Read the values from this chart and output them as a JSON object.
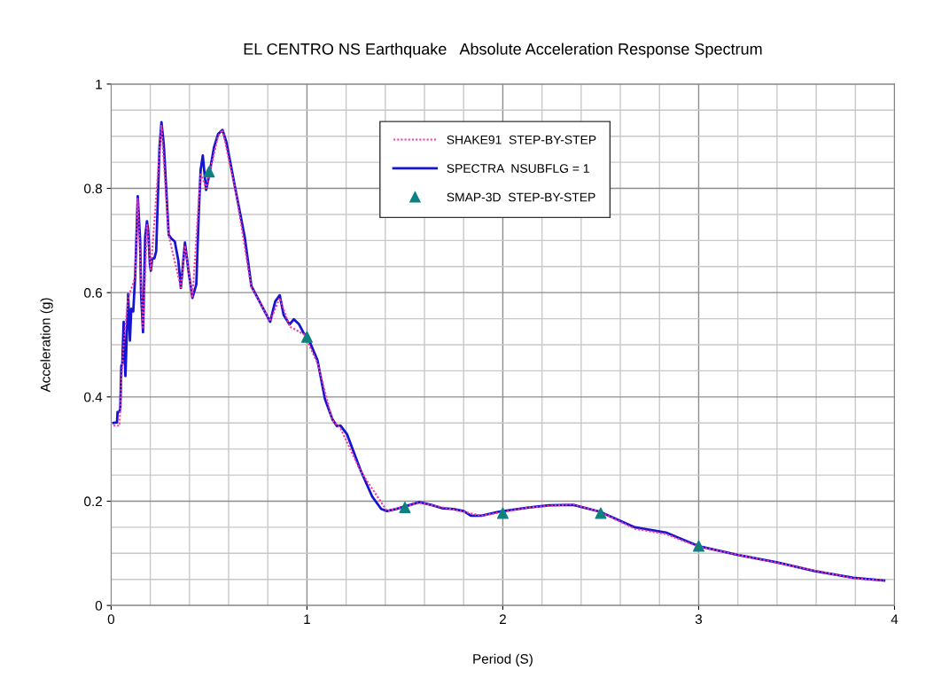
{
  "chart_data": {
    "type": "line",
    "title": "EL CENTRO NS Earthquake   Absolute Acceleration Response Spectrum",
    "xlabel": "Period (S)",
    "ylabel": "Acceleration (g)",
    "xlim": [
      0,
      4
    ],
    "ylim": [
      0,
      1
    ],
    "xticks": [
      0,
      1,
      2,
      3,
      4
    ],
    "yticks": [
      0,
      {
        "value": 0.2,
        "label": "0.2"
      },
      {
        "value": 0.4,
        "label": "0.4"
      },
      {
        "value": 0.6,
        "label": "0.6"
      },
      {
        "value": 0.8,
        "label": "0.8"
      },
      1
    ],
    "grid": true,
    "legend": "top",
    "marker": "none",
    "series": [
      {
        "name": "SPECTRA  NSUBFLG = 1",
        "line_style": "solid",
        "color": "#1414d2",
        "x": [
          0.012,
          0.03,
          0.033,
          0.043,
          0.047,
          0.052,
          0.057,
          0.064,
          0.073,
          0.087,
          0.096,
          0.103,
          0.113,
          0.123,
          0.136,
          0.148,
          0.153,
          0.163,
          0.174,
          0.183,
          0.189,
          0.198,
          0.203,
          0.21,
          0.221,
          0.23,
          0.247,
          0.257,
          0.269,
          0.294,
          0.307,
          0.325,
          0.343,
          0.356,
          0.377,
          0.395,
          0.415,
          0.435,
          0.447,
          0.457,
          0.468,
          0.485,
          0.499,
          0.525,
          0.546,
          0.569,
          0.589,
          0.638,
          0.682,
          0.716,
          0.812,
          0.838,
          0.861,
          0.881,
          0.911,
          0.933,
          0.96,
          0.985,
          1.0,
          1.054,
          1.092,
          1.13,
          1.153,
          1.171,
          1.205,
          1.273,
          1.333,
          1.379,
          1.409,
          1.454,
          1.574,
          1.634,
          1.695,
          1.748,
          1.8,
          1.838,
          1.891,
          1.981,
          2.132,
          2.237,
          2.358,
          2.494,
          2.674,
          2.832,
          2.998,
          3.2,
          3.397,
          3.593,
          3.789,
          3.947
        ],
        "values": [
          0.35,
          0.351,
          0.371,
          0.371,
          0.381,
          0.459,
          0.463,
          0.544,
          0.44,
          0.597,
          0.508,
          0.569,
          0.564,
          0.633,
          0.785,
          0.701,
          0.597,
          0.524,
          0.707,
          0.737,
          0.721,
          0.655,
          0.642,
          0.665,
          0.666,
          0.679,
          0.878,
          0.927,
          0.884,
          0.711,
          0.704,
          0.698,
          0.662,
          0.609,
          0.696,
          0.642,
          0.59,
          0.616,
          0.747,
          0.835,
          0.863,
          0.797,
          0.822,
          0.878,
          0.904,
          0.912,
          0.888,
          0.792,
          0.707,
          0.613,
          0.544,
          0.583,
          0.595,
          0.557,
          0.539,
          0.549,
          0.539,
          0.521,
          0.518,
          0.47,
          0.396,
          0.357,
          0.344,
          0.345,
          0.328,
          0.26,
          0.209,
          0.185,
          0.181,
          0.185,
          0.198,
          0.193,
          0.186,
          0.185,
          0.181,
          0.172,
          0.172,
          0.18,
          0.188,
          0.192,
          0.193,
          0.18,
          0.15,
          0.14,
          0.114,
          0.097,
          0.083,
          0.066,
          0.053,
          0.048
        ]
      },
      {
        "name": "SHAKE91  STEP-BY-STEP",
        "line_style": "dotted",
        "color": "#ff3399",
        "x": [
          0.012,
          0.043,
          0.052,
          0.064,
          0.087,
          0.123,
          0.136,
          0.163,
          0.183,
          0.203,
          0.247,
          0.257,
          0.294,
          0.356,
          0.377,
          0.415,
          0.457,
          0.485,
          0.546,
          0.569,
          0.638,
          0.716,
          0.812,
          0.861,
          0.911,
          0.985,
          1.054,
          1.13,
          1.171,
          1.273,
          1.409,
          1.574,
          1.748,
          1.891,
          2.132,
          2.358,
          2.494,
          2.674,
          2.832,
          2.998,
          3.397,
          3.789,
          3.947
        ],
        "values": [
          0.345,
          0.345,
          0.43,
          0.5,
          0.59,
          0.63,
          0.78,
          0.53,
          0.73,
          0.645,
          0.87,
          0.92,
          0.71,
          0.61,
          0.69,
          0.59,
          0.83,
          0.8,
          0.9,
          0.912,
          0.79,
          0.61,
          0.545,
          0.59,
          0.535,
          0.52,
          0.465,
          0.355,
          0.34,
          0.258,
          0.181,
          0.197,
          0.184,
          0.172,
          0.188,
          0.194,
          0.18,
          0.147,
          0.137,
          0.113,
          0.082,
          0.052,
          0.048
        ]
      },
      {
        "name": "SMAP-3D  STEP-BY-STEP",
        "type": "scatter",
        "marker": "triangle",
        "color": "#0f8080",
        "x": [
          0.5,
          1.0,
          1.5,
          2.0,
          2.5,
          3.0
        ],
        "values": [
          0.832,
          0.515,
          0.188,
          0.177,
          0.177,
          0.114
        ]
      }
    ]
  }
}
